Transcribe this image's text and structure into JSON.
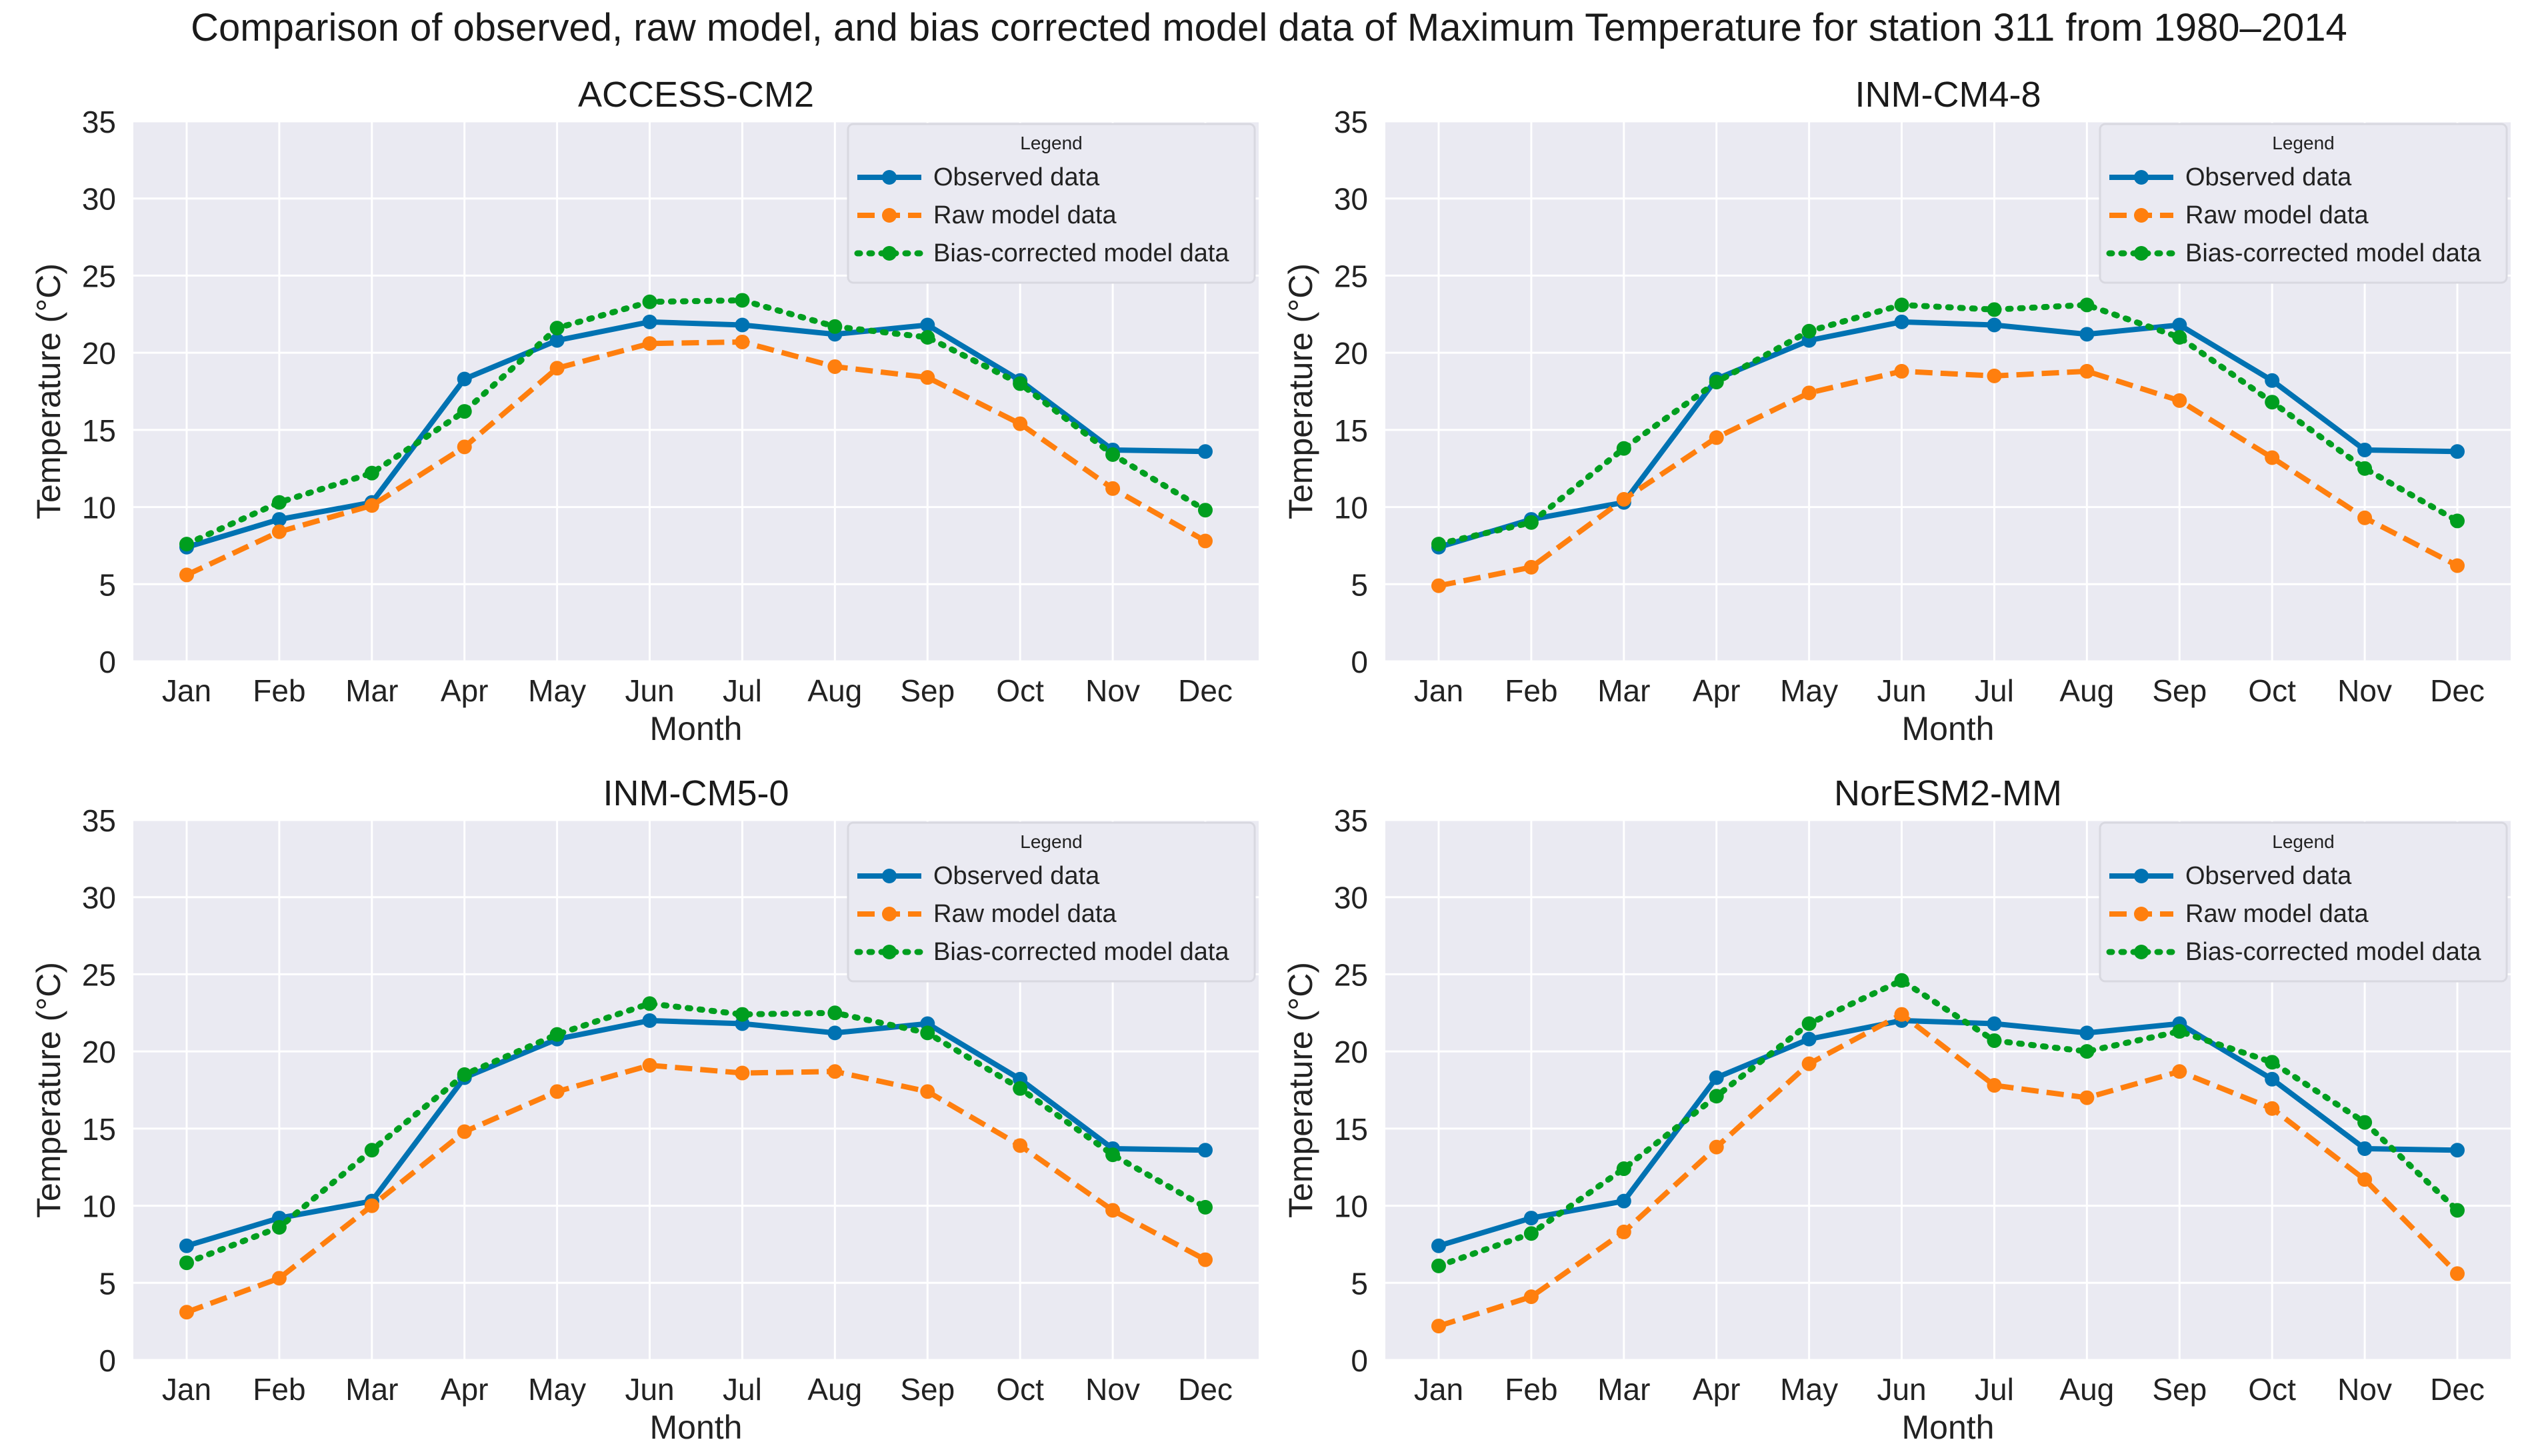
{
  "figure_title": "Comparison of observed, raw model, and bias corrected model data of Maximum Temperature for station 311 from 1980–2014",
  "colors": {
    "observed": "#0072b2",
    "raw": "#ff7f0e",
    "bias": "#009e1f",
    "plot_bg": "#eaeaf2",
    "grid": "#ffffff"
  },
  "chart_data": [
    {
      "type": "line",
      "title": "ACCESS-CM2",
      "xlabel": "Month",
      "ylabel": "Temperature (°C)",
      "ylim": [
        0,
        35
      ],
      "yticks": [
        "0",
        "5",
        "10",
        "15",
        "20",
        "25",
        "30",
        "35"
      ],
      "categories": [
        "Jan",
        "Feb",
        "Mar",
        "Apr",
        "May",
        "Jun",
        "Jul",
        "Aug",
        "Sep",
        "Oct",
        "Nov",
        "Dec"
      ],
      "legend_title": "Legend",
      "legend_position": "top-right",
      "series": [
        {
          "name": "Observed data",
          "style": "solid",
          "values": [
            7.4,
            9.2,
            10.3,
            18.3,
            20.8,
            22.0,
            21.8,
            21.2,
            21.8,
            18.2,
            13.7,
            13.6
          ]
        },
        {
          "name": "Raw model data",
          "style": "dashed",
          "values": [
            5.6,
            8.4,
            10.1,
            13.9,
            19.0,
            20.6,
            20.7,
            19.1,
            18.4,
            15.4,
            11.2,
            7.8
          ]
        },
        {
          "name": "Bias-corrected model data",
          "style": "dotted",
          "values": [
            7.6,
            10.3,
            12.2,
            16.2,
            21.6,
            23.3,
            23.4,
            21.7,
            21.0,
            18.0,
            13.4,
            9.8
          ]
        }
      ]
    },
    {
      "type": "line",
      "title": "INM-CM4-8",
      "xlabel": "Month",
      "ylabel": "Temperature (°C)",
      "ylim": [
        0,
        35
      ],
      "yticks": [
        "0",
        "5",
        "10",
        "15",
        "20",
        "25",
        "30",
        "35"
      ],
      "categories": [
        "Jan",
        "Feb",
        "Mar",
        "Apr",
        "May",
        "Jun",
        "Jul",
        "Aug",
        "Sep",
        "Oct",
        "Nov",
        "Dec"
      ],
      "legend_title": "Legend",
      "legend_position": "top-right",
      "series": [
        {
          "name": "Observed data",
          "style": "solid",
          "values": [
            7.4,
            9.2,
            10.3,
            18.3,
            20.8,
            22.0,
            21.8,
            21.2,
            21.8,
            18.2,
            13.7,
            13.6
          ]
        },
        {
          "name": "Raw model data",
          "style": "dashed",
          "values": [
            4.9,
            6.1,
            10.5,
            14.5,
            17.4,
            18.8,
            18.5,
            18.8,
            16.9,
            13.2,
            9.3,
            6.2
          ]
        },
        {
          "name": "Bias-corrected model data",
          "style": "dotted",
          "values": [
            7.6,
            9.0,
            13.8,
            18.1,
            21.4,
            23.1,
            22.8,
            23.1,
            21.0,
            16.8,
            12.5,
            9.1
          ]
        }
      ]
    },
    {
      "type": "line",
      "title": "INM-CM5-0",
      "xlabel": "Month",
      "ylabel": "Temperature (°C)",
      "ylim": [
        0,
        35
      ],
      "yticks": [
        "0",
        "5",
        "10",
        "15",
        "20",
        "25",
        "30",
        "35"
      ],
      "categories": [
        "Jan",
        "Feb",
        "Mar",
        "Apr",
        "May",
        "Jun",
        "Jul",
        "Aug",
        "Sep",
        "Oct",
        "Nov",
        "Dec"
      ],
      "legend_title": "Legend",
      "legend_position": "top-right",
      "series": [
        {
          "name": "Observed data",
          "style": "solid",
          "values": [
            7.4,
            9.2,
            10.3,
            18.3,
            20.8,
            22.0,
            21.8,
            21.2,
            21.8,
            18.2,
            13.7,
            13.6
          ]
        },
        {
          "name": "Raw model data",
          "style": "dashed",
          "values": [
            3.1,
            5.3,
            10.0,
            14.8,
            17.4,
            19.1,
            18.6,
            18.7,
            17.4,
            13.9,
            9.7,
            6.5
          ]
        },
        {
          "name": "Bias-corrected model data",
          "style": "dotted",
          "values": [
            6.3,
            8.6,
            13.6,
            18.5,
            21.1,
            23.1,
            22.4,
            22.5,
            21.2,
            17.6,
            13.3,
            9.9
          ]
        }
      ]
    },
    {
      "type": "line",
      "title": "NorESM2-MM",
      "xlabel": "Month",
      "ylabel": "Temperature (°C)",
      "ylim": [
        0,
        35
      ],
      "yticks": [
        "0",
        "5",
        "10",
        "15",
        "20",
        "25",
        "30",
        "35"
      ],
      "categories": [
        "Jan",
        "Feb",
        "Mar",
        "Apr",
        "May",
        "Jun",
        "Jul",
        "Aug",
        "Sep",
        "Oct",
        "Nov",
        "Dec"
      ],
      "legend_title": "Legend",
      "legend_position": "top-right",
      "series": [
        {
          "name": "Observed data",
          "style": "solid",
          "values": [
            7.4,
            9.2,
            10.3,
            18.3,
            20.8,
            22.0,
            21.8,
            21.2,
            21.8,
            18.2,
            13.7,
            13.6
          ]
        },
        {
          "name": "Raw model data",
          "style": "dashed",
          "values": [
            2.2,
            4.1,
            8.3,
            13.8,
            19.2,
            22.4,
            17.8,
            17.0,
            18.7,
            16.3,
            11.7,
            5.6
          ]
        },
        {
          "name": "Bias-corrected model data",
          "style": "dotted",
          "values": [
            6.1,
            8.2,
            12.4,
            17.1,
            21.8,
            24.6,
            20.7,
            20.0,
            21.3,
            19.3,
            15.4,
            9.7
          ]
        }
      ]
    }
  ]
}
